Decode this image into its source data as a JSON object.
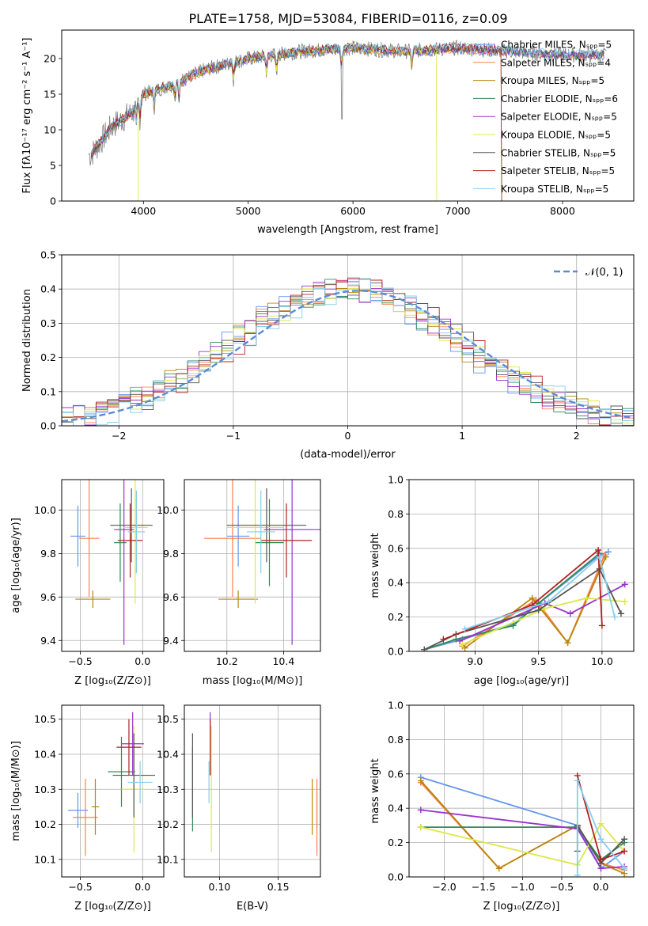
{
  "title": "PLATE=1758, MJD=53084, FIBERID=0116, z=0.09",
  "colors": [
    "#6495ED",
    "#FF7F50",
    "#B8860B",
    "#2E8B57",
    "#9932CC",
    "#DDE84A",
    "#555555",
    "#B22222",
    "#87CEEB"
  ],
  "chart_data": [
    {
      "id": "spectrum",
      "type": "line",
      "xlabel": "wavelength [Angstrom, rest frame]",
      "ylabel": "Flux [fλ10⁻¹⁷ erg cm⁻² s⁻¹ A⁻¹]",
      "xlim": [
        3220,
        8680
      ],
      "ylim": [
        0,
        24
      ],
      "xticks": [
        "4000",
        "5000",
        "6000",
        "7000",
        "8000"
      ],
      "yticks": [
        "0",
        "5",
        "10",
        "15",
        "20"
      ],
      "legend": [
        "Chabrier MILES, Nₛₚₚ=5",
        "Salpeter MILES, Nₛₚₚ=4",
        "Kroupa MILES, Nₛₚₚ=5",
        "Chabrier ELODIE, Nₛₚₚ=6",
        "Salpeter ELODIE, Nₛₚₚ=5",
        "Kroupa ELODIE, Nₛₚₚ=5",
        "Chabrier STELIB, Nₛₚₚ=5",
        "Salpeter STELIB, Nₛₚₚ=5",
        "Kroupa STELIB, Nₛₚₚ=5"
      ],
      "legend_position": "upper-right",
      "data_trend": {
        "x": [
          3500,
          3700,
          3900,
          4000,
          4300,
          4600,
          5000,
          5500,
          6000,
          6500,
          7000,
          7500,
          8000,
          8400
        ],
        "y": [
          6.5,
          10.5,
          12.5,
          15.0,
          16.5,
          18.5,
          20.0,
          21.0,
          21.5,
          21.0,
          21.5,
          21.0,
          20.5,
          20.5
        ]
      }
    },
    {
      "id": "residuals",
      "type": "line",
      "xlabel": "(data-model)/error",
      "ylabel": "Normed distribution",
      "xlim": [
        -2.5,
        2.5
      ],
      "ylim": [
        0,
        0.5
      ],
      "xticks": [
        "−2",
        "−1",
        "0",
        "1",
        "2"
      ],
      "yticks": [
        "0.0",
        "0.1",
        "0.2",
        "0.3",
        "0.4",
        "0.5"
      ],
      "legend": [
        "𝒩(0, 1)"
      ],
      "legend_position": "upper-right",
      "grid": true
    },
    {
      "id": "z-age",
      "type": "scatter",
      "xlabel": "Z [log₁₀(Z/Z⊙)]",
      "ylabel": "age  [log₁₀(age/yr)]",
      "xlim": [
        -0.65,
        0.17
      ],
      "ylim": [
        9.35,
        10.14
      ],
      "xticks": [
        "−0.5",
        "0.0"
      ],
      "yticks": [
        "9.4",
        "9.6",
        "9.8",
        "10.0"
      ],
      "grid": true,
      "points": [
        {
          "x": -0.52,
          "y": 9.88,
          "xerr": 0.06,
          "yerr": 0.14
        },
        {
          "x": -0.43,
          "y": 9.87,
          "xerr": 0.08,
          "yerr": 0.27
        },
        {
          "x": -0.4,
          "y": 9.59,
          "xerr": 0.14,
          "yerr": 0.04
        },
        {
          "x": -0.18,
          "y": 9.85,
          "xerr": 0.05,
          "yerr": 0.18
        },
        {
          "x": -0.15,
          "y": 9.91,
          "xerr": 0.08,
          "yerr": 0.53
        },
        {
          "x": -0.06,
          "y": 9.92,
          "xerr": 0.1,
          "yerr": 0.35
        },
        {
          "x": -0.09,
          "y": 9.93,
          "xerr": 0.17,
          "yerr": 0.17
        },
        {
          "x": -0.1,
          "y": 9.86,
          "xerr": 0.1,
          "yerr": 0.17
        },
        {
          "x": -0.05,
          "y": 9.9,
          "xerr": 0.07,
          "yerr": 0.19
        }
      ]
    },
    {
      "id": "mass-age",
      "type": "scatter",
      "xlabel": "mass [log₁₀(M/M⊙)]",
      "ylabel": "",
      "xlim": [
        10.05,
        10.53
      ],
      "ylim": [
        9.35,
        10.14
      ],
      "xticks": [
        "10.2",
        "10.4"
      ],
      "yticks": [
        "9.4",
        "9.6",
        "9.8",
        "10.0"
      ],
      "grid": true,
      "points": [
        {
          "x": 10.24,
          "y": 9.88,
          "xerr": 0.04,
          "yerr": 0.14
        },
        {
          "x": 10.22,
          "y": 9.87,
          "xerr": 0.1,
          "yerr": 0.27
        },
        {
          "x": 10.24,
          "y": 9.59,
          "xerr": 0.07,
          "yerr": 0.04
        },
        {
          "x": 10.35,
          "y": 9.85,
          "xerr": 0.05,
          "yerr": 0.2
        },
        {
          "x": 10.43,
          "y": 9.91,
          "xerr": 0.1,
          "yerr": 0.53
        },
        {
          "x": 10.3,
          "y": 9.92,
          "xerr": 0.1,
          "yerr": 0.35
        },
        {
          "x": 10.34,
          "y": 9.93,
          "xerr": 0.14,
          "yerr": 0.17
        },
        {
          "x": 10.41,
          "y": 9.86,
          "xerr": 0.09,
          "yerr": 0.17
        },
        {
          "x": 10.32,
          "y": 9.9,
          "xerr": 0.05,
          "yerr": 0.19
        }
      ]
    },
    {
      "id": "age-weight",
      "type": "line",
      "xlabel": "age  [log₁₀(age/yr)]",
      "ylabel": "mass weight",
      "xlim": [
        8.48,
        10.25
      ],
      "ylim": [
        0,
        1
      ],
      "xticks": [
        "9.0",
        "9.5",
        "10.0"
      ],
      "yticks": [
        "0.0",
        "0.2",
        "0.4",
        "0.6",
        "0.8",
        "1.0"
      ],
      "grid": true,
      "series": [
        {
          "x": [
            8.6,
            8.9,
            9.3,
            9.98,
            10.05
          ],
          "y": [
            0.01,
            0.07,
            0.16,
            0.56,
            0.58
          ]
        },
        {
          "x": [
            8.9,
            9.48,
            9.73,
            10.02
          ],
          "y": [
            0.03,
            0.3,
            0.05,
            0.56
          ]
        },
        {
          "x": [
            8.92,
            9.45,
            9.73,
            10.03
          ],
          "y": [
            0.02,
            0.31,
            0.05,
            0.55
          ]
        },
        {
          "x": [
            8.6,
            8.85,
            9.3,
            9.5,
            9.98
          ],
          "y": [
            0.01,
            0.07,
            0.15,
            0.28,
            0.57
          ]
        },
        {
          "x": [
            8.88,
            9.55,
            9.75,
            10.18
          ],
          "y": [
            0.06,
            0.28,
            0.22,
            0.39
          ]
        },
        {
          "x": [
            8.9,
            9.55,
            9.88,
            10.18
          ],
          "y": [
            0.04,
            0.25,
            0.31,
            0.29
          ]
        },
        {
          "x": [
            8.6,
            8.85,
            9.5,
            9.98,
            10.15
          ],
          "y": [
            0.01,
            0.1,
            0.24,
            0.48,
            0.22
          ]
        },
        {
          "x": [
            8.75,
            9.45,
            9.97,
            10.0
          ],
          "y": [
            0.07,
            0.27,
            0.59,
            0.15
          ]
        },
        {
          "x": [
            8.92,
            9.58,
            9.98,
            10.1
          ],
          "y": [
            0.13,
            0.29,
            0.55,
            0.2
          ]
        }
      ]
    },
    {
      "id": "z-mass",
      "type": "scatter",
      "xlabel": "Z [log₁₀(Z/Z⊙)]",
      "ylabel": "mass [log₁₀(M/M⊙)]",
      "xlim": [
        -0.65,
        0.17
      ],
      "ylim": [
        10.05,
        10.54
      ],
      "xticks": [
        "−0.5",
        "0.0"
      ],
      "yticks": [
        "10.1",
        "10.2",
        "10.3",
        "10.4",
        "10.5"
      ],
      "grid": true,
      "points": [
        {
          "x": -0.52,
          "y": 10.24,
          "xerr": 0.08,
          "yerr": 0.05
        },
        {
          "x": -0.46,
          "y": 10.22,
          "xerr": 0.1,
          "yerr": 0.11
        },
        {
          "x": -0.38,
          "y": 10.25,
          "xerr": 0.03,
          "yerr": 0.08
        },
        {
          "x": -0.17,
          "y": 10.35,
          "xerr": 0.11,
          "yerr": 0.1
        },
        {
          "x": -0.08,
          "y": 10.43,
          "xerr": 0.09,
          "yerr": 0.09
        },
        {
          "x": -0.07,
          "y": 10.3,
          "xerr": 0.1,
          "yerr": 0.18
        },
        {
          "x": -0.07,
          "y": 10.34,
          "xerr": 0.17,
          "yerr": 0.12
        },
        {
          "x": -0.11,
          "y": 10.42,
          "xerr": 0.1,
          "yerr": 0.08
        },
        {
          "x": -0.02,
          "y": 10.32,
          "xerr": 0.1,
          "yerr": 0.06
        }
      ]
    },
    {
      "id": "ebv-mass",
      "type": "scatter",
      "xlabel": "E(B-V)",
      "ylabel": "",
      "xlim": [
        0.07,
        0.186
      ],
      "ylim": [
        10.05,
        10.54
      ],
      "xticks": [
        "0.10",
        "0.15"
      ],
      "yticks": [
        "10.1",
        "10.2",
        "10.3",
        "10.4",
        "10.5"
      ],
      "grid": true,
      "points": [
        {
          "x": 0.183,
          "y": 10.24,
          "xerr": 0,
          "yerr": 0.05
        },
        {
          "x": 0.183,
          "y": 10.22,
          "xerr": 0,
          "yerr": 0.11
        },
        {
          "x": 0.179,
          "y": 10.25,
          "xerr": 0,
          "yerr": 0.08
        },
        {
          "x": 0.077,
          "y": 10.3,
          "xerr": 0,
          "yerr": 0.12
        },
        {
          "x": 0.092,
          "y": 10.43,
          "xerr": 0,
          "yerr": 0.09
        },
        {
          "x": 0.093,
          "y": 10.3,
          "xerr": 0,
          "yerr": 0.18
        },
        {
          "x": 0.077,
          "y": 10.34,
          "xerr": 0,
          "yerr": 0.12
        },
        {
          "x": 0.092,
          "y": 10.42,
          "xerr": 0,
          "yerr": 0.08
        },
        {
          "x": 0.091,
          "y": 10.32,
          "xerr": 0,
          "yerr": 0.06
        }
      ]
    },
    {
      "id": "z-weight",
      "type": "line",
      "xlabel": "Z [log₁₀(Z/Z⊙)]",
      "ylabel": "mass weight",
      "xlim": [
        -2.45,
        0.42
      ],
      "ylim": [
        0,
        1
      ],
      "xticks": [
        "−2.0",
        "−1.5",
        "−1.0",
        "−0.5",
        "0.0"
      ],
      "yticks": [
        "0.0",
        "0.2",
        "0.4",
        "0.6",
        "0.8",
        "1.0"
      ],
      "grid": true,
      "series": [
        {
          "x": [
            -2.3,
            -0.3,
            0.0,
            0.3
          ],
          "y": [
            0.58,
            0.3,
            0.05,
            0.15
          ]
        },
        {
          "x": [
            -2.3,
            -1.3,
            -0.3,
            0.0,
            0.3
          ],
          "y": [
            0.55,
            0.05,
            0.3,
            0.08,
            0.04
          ]
        },
        {
          "x": [
            -2.3,
            -1.3,
            -0.3,
            0.0,
            0.3
          ],
          "y": [
            0.56,
            0.05,
            0.3,
            0.08,
            0.02
          ]
        },
        {
          "x": [
            -2.3,
            -0.3,
            0.0,
            0.3
          ],
          "y": [
            0.29,
            0.29,
            0.1,
            0.2
          ]
        },
        {
          "x": [
            -2.3,
            -0.3,
            0.0,
            0.3
          ],
          "y": [
            0.39,
            0.28,
            0.05,
            0.06
          ]
        },
        {
          "x": [
            -2.3,
            -0.3,
            0.0,
            0.3
          ],
          "y": [
            0.29,
            0.07,
            0.31,
            0.15
          ]
        },
        {
          "x": [
            -0.3,
            -0.3,
            0.0,
            0.3
          ],
          "y": [
            0.15,
            0.3,
            0.08,
            0.22
          ]
        },
        {
          "x": [
            -0.3,
            0.0,
            0.3
          ],
          "y": [
            0.59,
            0.1,
            0.15
          ]
        },
        {
          "x": [
            -0.3,
            -0.3,
            0.0,
            0.3
          ],
          "y": [
            0.01,
            0.56,
            0.22,
            0.05
          ]
        }
      ]
    }
  ]
}
